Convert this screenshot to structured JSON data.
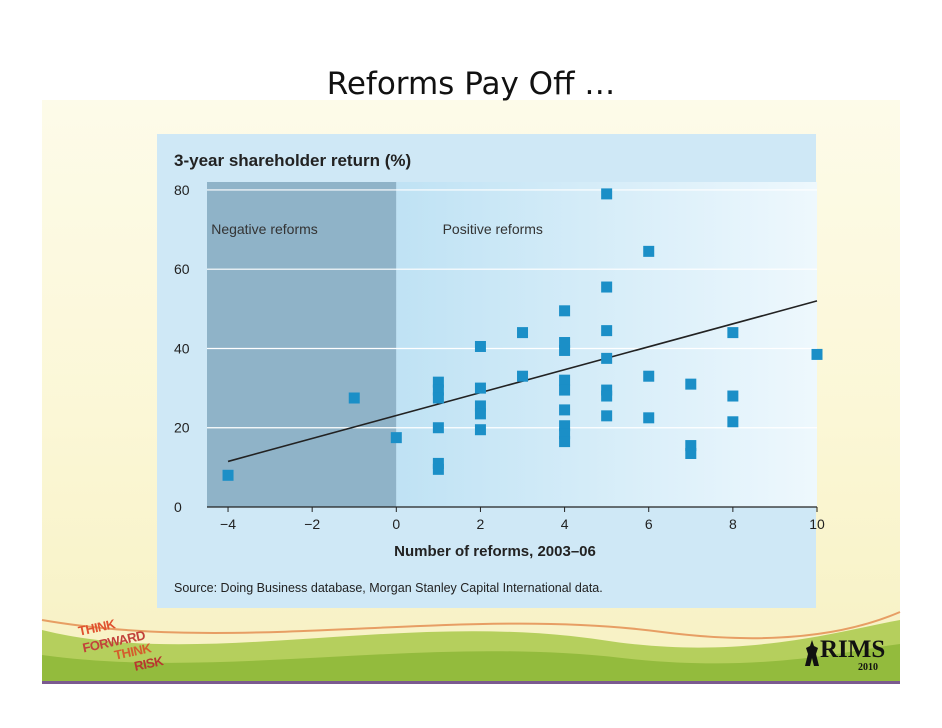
{
  "slide": {
    "title": "Reforms Pay Off …",
    "logo_left_lines": [
      "THINK",
      "FORWARD",
      "THINK",
      "RISK"
    ],
    "logo_right_text": "RIMS",
    "logo_right_year": "2010"
  },
  "colors": {
    "panel_bg": "#cfe8f6",
    "negative_region": "#8fb3c8",
    "positive_region": "#d8eef9",
    "marker": "#1b8fc7",
    "trendline": "#222222",
    "gridline": "#ffffff"
  },
  "chart_data": {
    "type": "scatter",
    "title": "3-year shareholder return (%)",
    "xlabel": "Number of reforms, 2003–06",
    "ylabel": "",
    "xlim": [
      -4.5,
      10
    ],
    "ylim": [
      0,
      82
    ],
    "xticks": [
      -4,
      -2,
      0,
      2,
      4,
      6,
      8,
      10
    ],
    "yticks": [
      0,
      20,
      40,
      60,
      80
    ],
    "xtick_labels": [
      "−4",
      "−2",
      "0",
      "2",
      "4",
      "6",
      "8",
      "10"
    ],
    "ytick_labels": [
      "0",
      "20",
      "40",
      "60",
      "80"
    ],
    "grid": "horizontal",
    "regions": [
      {
        "label": "Negative reforms",
        "x_from": -4.5,
        "x_to": 0
      },
      {
        "label": "Positive reforms",
        "x_from": 0,
        "x_to": 10
      }
    ],
    "source": "Source: Doing Business database, Morgan Stanley Capital International data.",
    "trendline": {
      "x": [
        -4,
        10
      ],
      "y": [
        11.5,
        52
      ]
    },
    "points": [
      {
        "x": -4,
        "y": 8
      },
      {
        "x": -1,
        "y": 27.5
      },
      {
        "x": 0,
        "y": 17.5
      },
      {
        "x": 1,
        "y": 31.5
      },
      {
        "x": 1,
        "y": 29.5
      },
      {
        "x": 1,
        "y": 27.5
      },
      {
        "x": 1,
        "y": 20
      },
      {
        "x": 1,
        "y": 11
      },
      {
        "x": 1,
        "y": 9.5
      },
      {
        "x": 2,
        "y": 40.5
      },
      {
        "x": 2,
        "y": 30
      },
      {
        "x": 2,
        "y": 25.5
      },
      {
        "x": 2,
        "y": 23.5
      },
      {
        "x": 2,
        "y": 19.5
      },
      {
        "x": 3,
        "y": 44
      },
      {
        "x": 3,
        "y": 33
      },
      {
        "x": 4,
        "y": 49.5
      },
      {
        "x": 4,
        "y": 41.5
      },
      {
        "x": 4,
        "y": 39.5
      },
      {
        "x": 4,
        "y": 32
      },
      {
        "x": 4,
        "y": 29.5
      },
      {
        "x": 4,
        "y": 24.5
      },
      {
        "x": 4,
        "y": 20.5
      },
      {
        "x": 4,
        "y": 18.5
      },
      {
        "x": 4,
        "y": 16.5
      },
      {
        "x": 5,
        "y": 79
      },
      {
        "x": 5,
        "y": 55.5
      },
      {
        "x": 5,
        "y": 44.5
      },
      {
        "x": 5,
        "y": 37.5
      },
      {
        "x": 5,
        "y": 29.5
      },
      {
        "x": 5,
        "y": 28
      },
      {
        "x": 5,
        "y": 23
      },
      {
        "x": 6,
        "y": 64.5
      },
      {
        "x": 6,
        "y": 33
      },
      {
        "x": 6,
        "y": 22.5
      },
      {
        "x": 7,
        "y": 31
      },
      {
        "x": 7,
        "y": 15.5
      },
      {
        "x": 7,
        "y": 13.5
      },
      {
        "x": 8,
        "y": 44
      },
      {
        "x": 8,
        "y": 28
      },
      {
        "x": 8,
        "y": 21.5
      },
      {
        "x": 10,
        "y": 38.5
      }
    ]
  }
}
